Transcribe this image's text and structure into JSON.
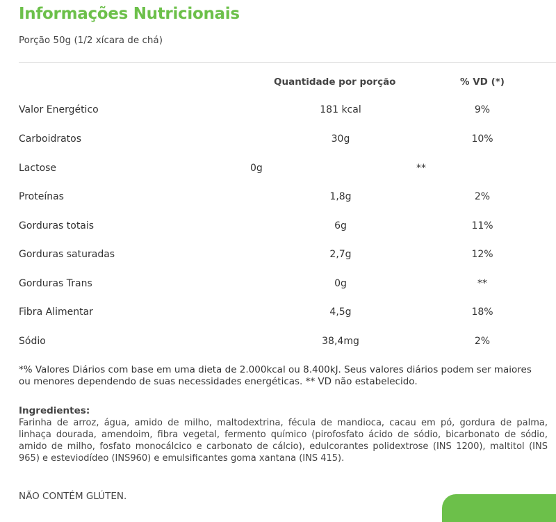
{
  "title": "Informações Nutricionais",
  "portion": "Porção 50g (1/2 xícara de chá)",
  "table": {
    "headers": {
      "quantity": "Quantidade por porção",
      "vd": "% VD (*)"
    },
    "rows": [
      {
        "name": "Valor Energético",
        "quantity": "181 kcal",
        "vd": "9%"
      },
      {
        "name": "Carboidratos",
        "quantity": "30g",
        "vd": "10%"
      },
      {
        "name": "Lactose",
        "quantity": "0g",
        "vd": "**"
      },
      {
        "name": "Proteínas",
        "quantity": "1,8g",
        "vd": "2%"
      },
      {
        "name": "Gorduras totais",
        "quantity": "6g",
        "vd": "11%"
      },
      {
        "name": "Gorduras saturadas",
        "quantity": "2,7g",
        "vd": "12%"
      },
      {
        "name": "Gorduras Trans",
        "quantity": "0g",
        "vd": "**"
      },
      {
        "name": "Fibra Alimentar",
        "quantity": "4,5g",
        "vd": "18%"
      },
      {
        "name": "Sódio",
        "quantity": "38,4mg",
        "vd": "2%"
      }
    ]
  },
  "footnote": "*% Valores Diários com base em uma dieta de 2.000kcal ou 8.400kJ. Seus valores diários podem ser maiores ou menores dependendo de suas necessidades energéticas. ** VD não estabelecido.",
  "ingredients": {
    "label": "Ingredientes:",
    "text": "Farinha de arroz, água, amido de milho, maltodextrina, fécula de mandioca, cacau em pó, gordura de palma, linhaça dourada, amendoim, fibra vegetal, fermento químico (pirofosfato ácido de sódio, bicarbonato de sódio, amido de milho, fosfato monocálcico e carbonato de cálcio), edulcorantes polidextrose (INS 1200), maltitol (INS 965) e esteviodídeo (INS960) e emulsificantes goma xantana (INS 415)."
  },
  "gluten_notice": "NÃO CONTÉM GLÚTEN.",
  "colors": {
    "accent": "#6cc04a"
  }
}
